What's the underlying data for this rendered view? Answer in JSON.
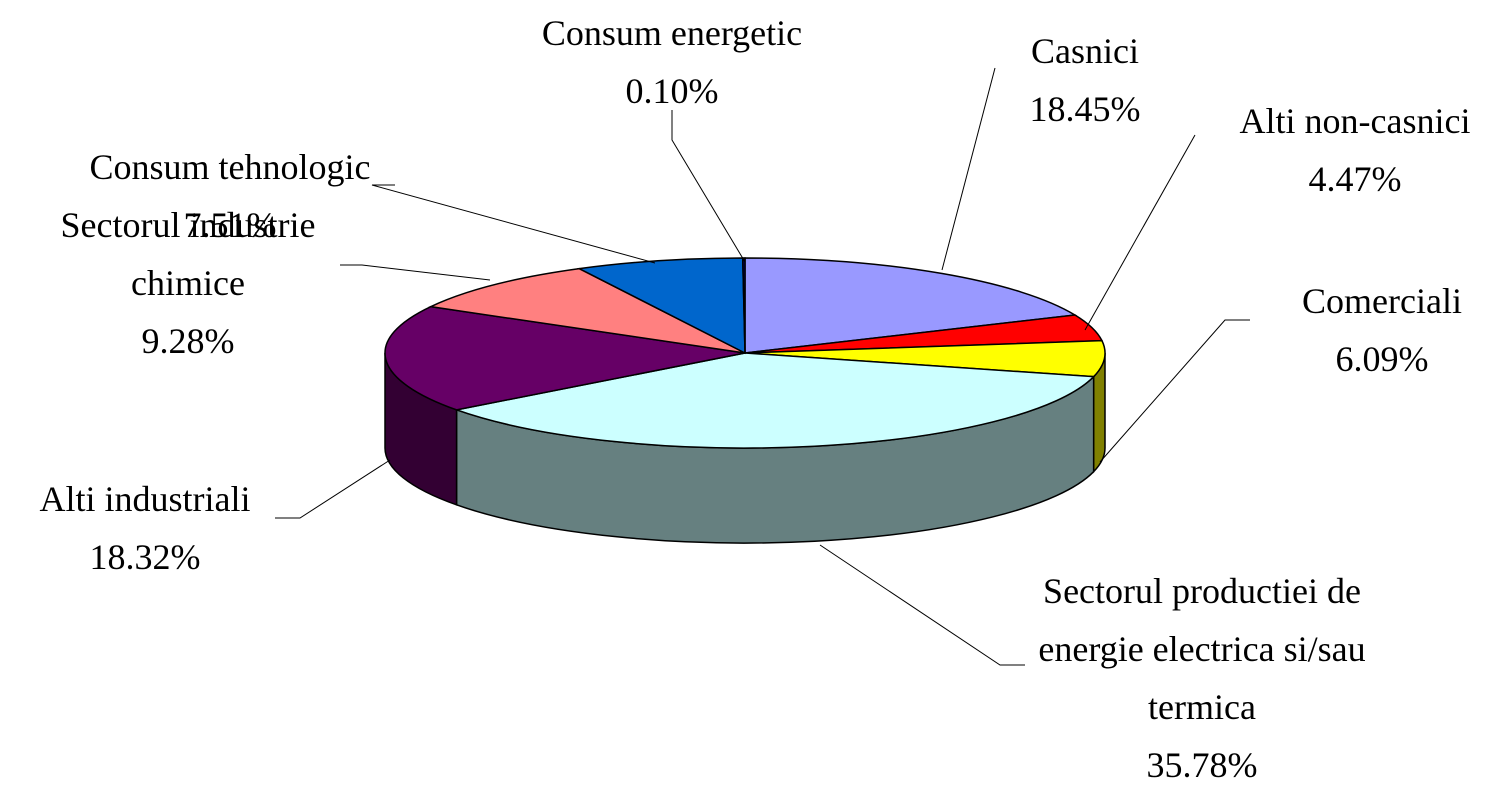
{
  "chart_data": {
    "type": "pie3d",
    "categories": [
      "Casnici",
      "Alti non-casnici",
      "Comerciali",
      "Sectorul productiei de energie electrica si/sau termica",
      "Alti industriali",
      "Sectorul industrie chimice",
      "Consum tehnologic",
      "Consum energetic"
    ],
    "values": [
      18.45,
      4.47,
      6.09,
      35.78,
      18.32,
      9.28,
      7.51,
      0.1
    ],
    "value_labels": [
      "18.45%",
      "4.47%",
      "6.09%",
      "35.78%",
      "18.32%",
      "9.28%",
      "7.51%",
      "0.10%"
    ],
    "colors": [
      "#9999ff",
      "#ff0000",
      "#ffff00",
      "#ccffff",
      "#660066",
      "#ff8080",
      "#0066cc",
      "#000080"
    ]
  }
}
